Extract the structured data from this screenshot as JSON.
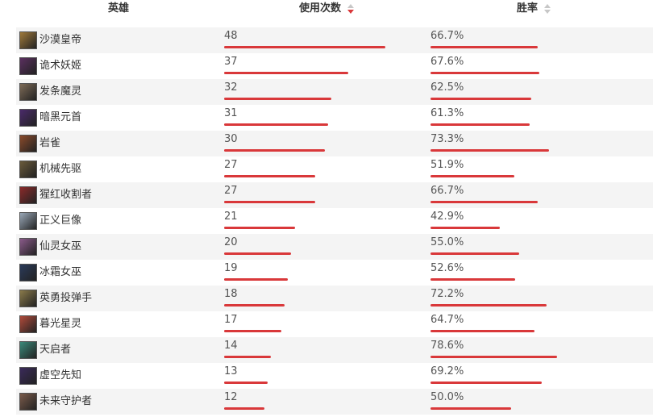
{
  "header": {
    "hero": "英雄",
    "uses": "使用次数",
    "winrate": "胜率"
  },
  "rows": [
    {
      "name": "沙漠皇帝",
      "uses": "48",
      "winrate": "66.7%",
      "avatar": "#a07a3a"
    },
    {
      "name": "诡术妖姬",
      "uses": "37",
      "winrate": "67.6%",
      "avatar": "#5a2f5f"
    },
    {
      "name": "发条魔灵",
      "uses": "32",
      "winrate": "62.5%",
      "avatar": "#7d6a56"
    },
    {
      "name": "暗黑元首",
      "uses": "31",
      "winrate": "61.3%",
      "avatar": "#4a2a6a"
    },
    {
      "name": "岩雀",
      "uses": "30",
      "winrate": "73.3%",
      "avatar": "#8a4a2a"
    },
    {
      "name": "机械先驱",
      "uses": "27",
      "winrate": "51.9%",
      "avatar": "#6a5a3a"
    },
    {
      "name": "猩红收割者",
      "uses": "27",
      "winrate": "66.7%",
      "avatar": "#8a2a2a"
    },
    {
      "name": "正义巨像",
      "uses": "21",
      "winrate": "42.9%",
      "avatar": "#9aa8b8"
    },
    {
      "name": "仙灵女巫",
      "uses": "20",
      "winrate": "55.0%",
      "avatar": "#8a5a8a"
    },
    {
      "name": "冰霜女巫",
      "uses": "19",
      "winrate": "52.6%",
      "avatar": "#2a3a5a"
    },
    {
      "name": "英勇投弹手",
      "uses": "18",
      "winrate": "72.2%",
      "avatar": "#8a7a4a"
    },
    {
      "name": "暮光星灵",
      "uses": "17",
      "winrate": "64.7%",
      "avatar": "#b04a3a"
    },
    {
      "name": "天启者",
      "uses": "14",
      "winrate": "78.6%",
      "avatar": "#3a8a7a"
    },
    {
      "name": "虚空先知",
      "uses": "13",
      "winrate": "69.2%",
      "avatar": "#3a2a5a"
    },
    {
      "name": "未来守护者",
      "uses": "12",
      "winrate": "50.0%",
      "avatar": "#7a5a4a"
    }
  ],
  "bar_color": "#d9383a",
  "sort_active_color": "#d9383a",
  "sort_inactive_color": "#c7c7c7",
  "stripe_color": "#f4f4f4"
}
